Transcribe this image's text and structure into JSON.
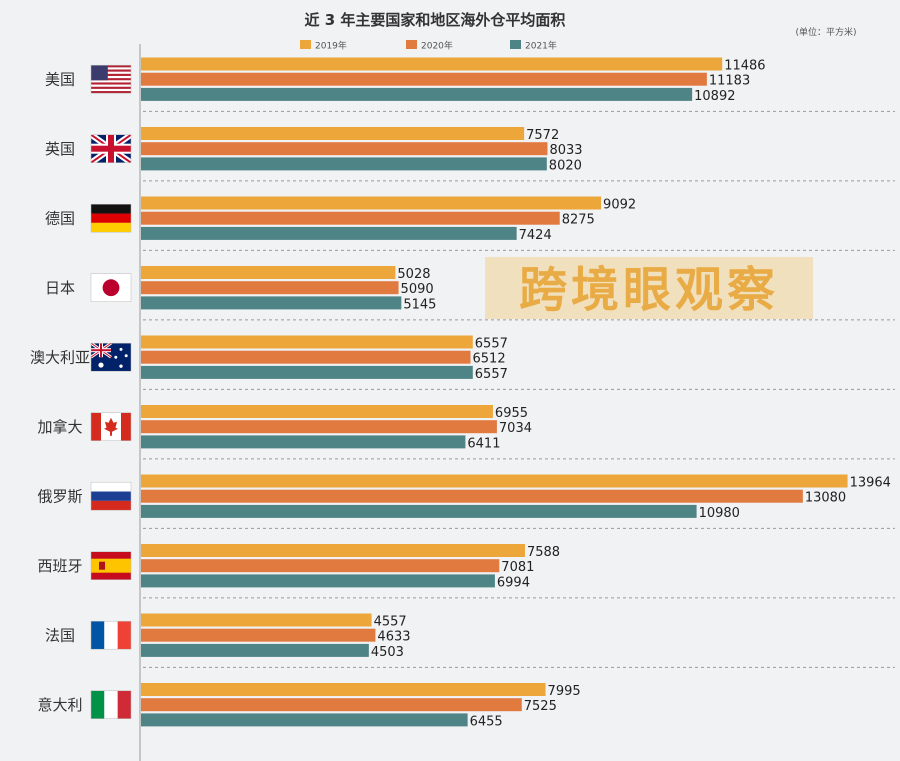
{
  "chart_data": {
    "type": "bar",
    "orientation": "horizontal",
    "title": "近 3 年主要国家和地区海外仓平均面积",
    "unit_label": "(单位：平方米)",
    "categories": [
      "美国",
      "英国",
      "德国",
      "日本",
      "澳大利亚",
      "加拿大",
      "俄罗斯",
      "西班牙",
      "法国",
      "意大利"
    ],
    "series": [
      {
        "name": "2019年",
        "color": "#eca63a",
        "values": [
          11486,
          7572,
          9092,
          5028,
          6557,
          6955,
          13964,
          7588,
          4557,
          7995
        ]
      },
      {
        "name": "2020年",
        "color": "#e07a3f",
        "values": [
          11183,
          8033,
          8275,
          5090,
          6512,
          7034,
          13080,
          7081,
          4633,
          7525
        ]
      },
      {
        "name": "2021年",
        "color": "#4f8486",
        "values": [
          10892,
          8020,
          7424,
          5145,
          6557,
          6411,
          10980,
          6994,
          4503,
          6455
        ]
      }
    ],
    "flags": [
      "us-flag",
      "uk-flag",
      "germany-flag",
      "japan-flag",
      "australia-flag",
      "canada-flag",
      "russia-flag",
      "spain-flag",
      "france-flag",
      "italy-flag"
    ],
    "legend_position": "top",
    "grid": "dashed separators between country groups",
    "xlim": [
      0,
      14000
    ]
  },
  "watermark": "跨境眼观察"
}
